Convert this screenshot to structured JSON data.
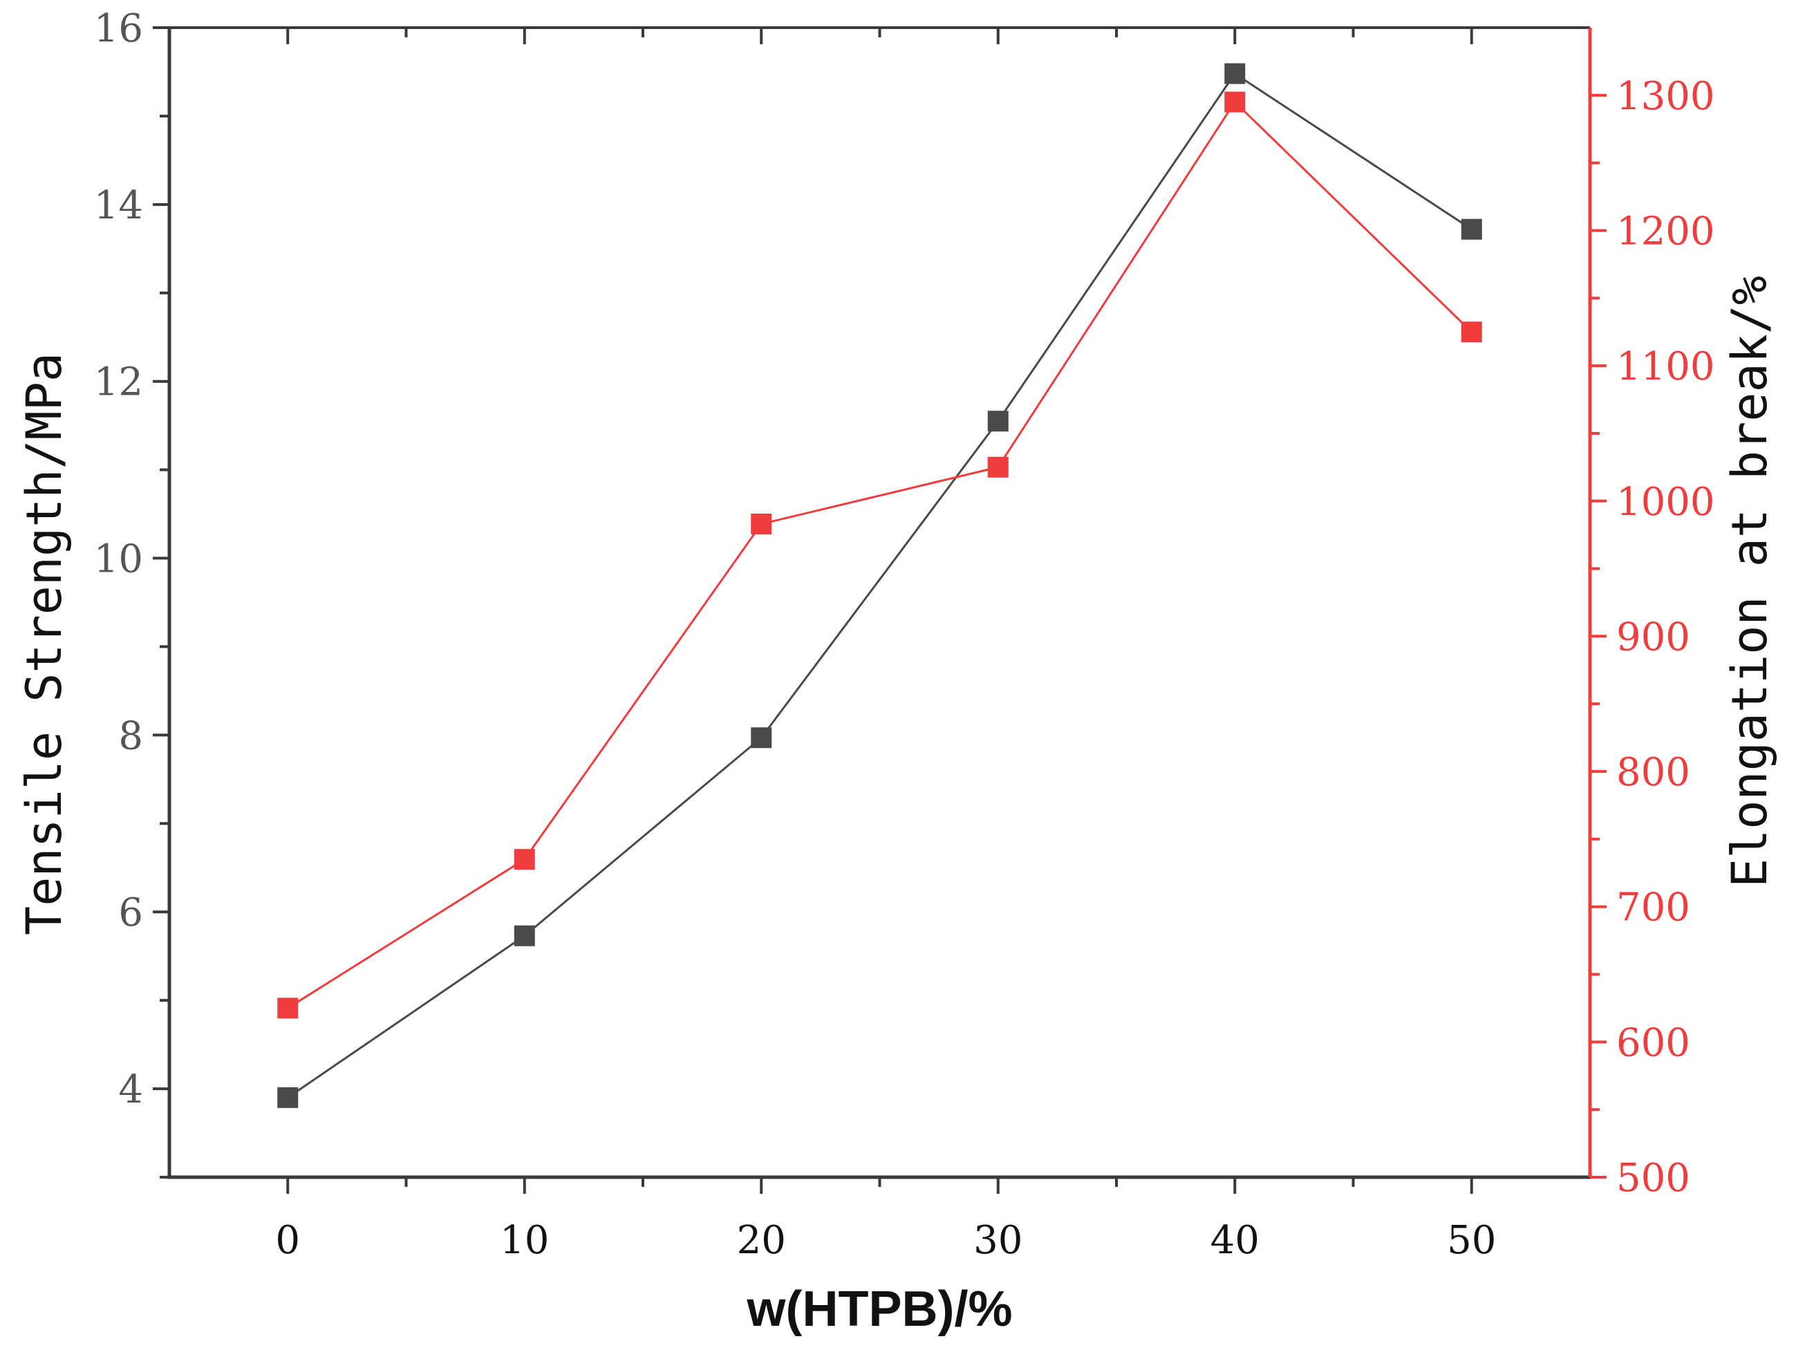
{
  "chart_data": {
    "type": "line",
    "x": [
      0,
      10,
      20,
      30,
      40,
      50
    ],
    "xlabel": "w(HTPB)/%",
    "xlim": [
      -5,
      55
    ],
    "xticks": [
      0,
      10,
      20,
      30,
      40,
      50
    ],
    "series": [
      {
        "name": "Tensile Strength",
        "axis": "left",
        "color": "#4a4a4a",
        "marker": "square",
        "values": [
          3.9,
          5.73,
          7.97,
          11.55,
          15.48,
          13.72
        ]
      },
      {
        "name": "Elongation at break",
        "axis": "right",
        "color": "#f03c3c",
        "marker": "square",
        "values": [
          625,
          735,
          983,
          1025,
          1295,
          1125
        ]
      }
    ],
    "y_left": {
      "label": "Tensile Strength/MPa",
      "lim": [
        3,
        16
      ],
      "ticks": [
        4,
        6,
        8,
        10,
        12,
        14,
        16
      ],
      "color": "#4a4a4a"
    },
    "y_right": {
      "label": "Elongation at break/%",
      "lim": [
        500,
        1350
      ],
      "ticks": [
        500,
        600,
        700,
        800,
        900,
        1000,
        1100,
        1200,
        1300
      ],
      "color": "#f03c3c"
    },
    "grid": false,
    "legend": "none"
  }
}
